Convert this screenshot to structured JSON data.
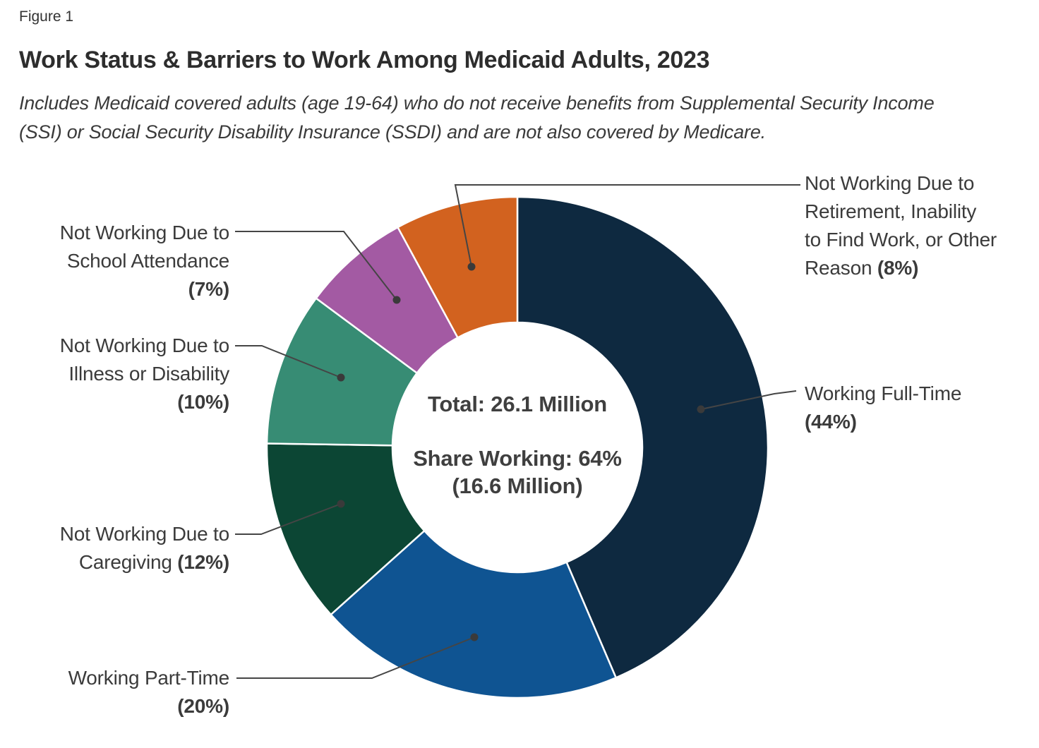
{
  "figure_label": "Figure 1",
  "title": "Work Status & Barriers to Work Among Medicaid Adults, 2023",
  "subtitle": "Includes Medicaid covered adults (age 19-64) who do not receive benefits from Supplemental Security Income (SSI) or Social Security Disability Insurance (SSDI) and are not also covered by Medicare.",
  "center": {
    "total": "Total: 26.1 Million",
    "share_line1": "Share Working: 64%",
    "share_line2": "(16.6 Million)"
  },
  "chart_data": {
    "type": "pie",
    "subtype": "donut",
    "title": "Work Status & Barriers to Work Among Medicaid Adults, 2023",
    "total_million": 26.1,
    "share_working_pct": 64,
    "share_working_million": 16.6,
    "start_angle_deg": 0,
    "direction": "clockwise",
    "segments": [
      {
        "id": "working-full-time",
        "value": 44,
        "color": "#0E2940",
        "label_lines": [
          "Working Full-Time",
          "(44%)"
        ]
      },
      {
        "id": "working-part-time",
        "value": 20,
        "color": "#0F5492",
        "label_lines": [
          "Working Part-Time",
          "(20%)"
        ]
      },
      {
        "id": "not-working-caregiving",
        "value": 12,
        "color": "#0C4634",
        "label_lines": [
          "Not Working Due to",
          "Caregiving (12%)"
        ]
      },
      {
        "id": "not-working-illness-disability",
        "value": 10,
        "color": "#378C74",
        "label_lines": [
          "Not Working Due to",
          "Illness or Disability",
          "(10%)"
        ]
      },
      {
        "id": "not-working-school",
        "value": 7,
        "color": "#A35AA3",
        "label_lines": [
          "Not Working Due to",
          "School Attendance",
          "(7%)"
        ]
      },
      {
        "id": "not-working-retirement-other",
        "value": 8,
        "color": "#D2621F",
        "label_lines": [
          "Not Working Due to",
          "Retirement, Inability",
          "to Find Work, or Other",
          "Reason (8%)"
        ]
      }
    ]
  }
}
